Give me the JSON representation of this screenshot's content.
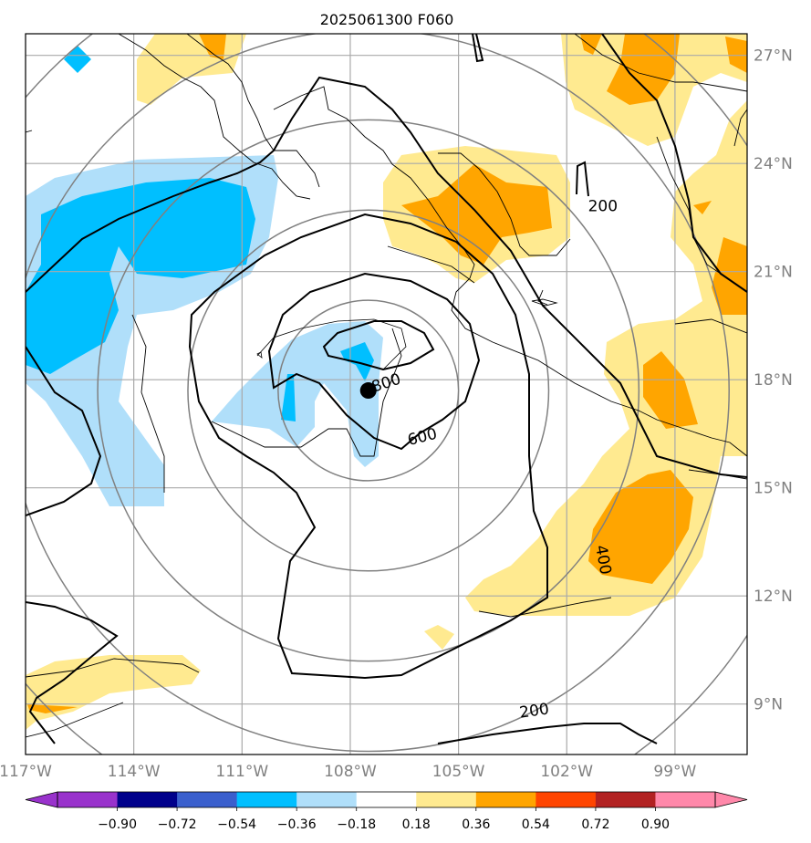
{
  "title": "2025061300 F060",
  "map": {
    "lon_range": [
      -117.0,
      -97.0
    ],
    "lat_range": [
      7.6,
      27.6
    ],
    "lon_ticks": [
      {
        "value": -117,
        "label": "117°W"
      },
      {
        "value": -114,
        "label": "114°W"
      },
      {
        "value": -111,
        "label": "111°W"
      },
      {
        "value": -108,
        "label": "108°W"
      },
      {
        "value": -105,
        "label": "105°W"
      },
      {
        "value": -102,
        "label": "102°W"
      },
      {
        "value": -99,
        "label": "99°W"
      }
    ],
    "lat_ticks": [
      {
        "value": 9,
        "label": "9°N"
      },
      {
        "value": 12,
        "label": "12°N"
      },
      {
        "value": 15,
        "label": "15°N"
      },
      {
        "value": 18,
        "label": "18°N"
      },
      {
        "value": 21,
        "label": "21°N"
      },
      {
        "value": 24,
        "label": "24°N"
      },
      {
        "value": 27,
        "label": "27°N"
      }
    ],
    "center": {
      "lon": -107.5,
      "lat": 17.7
    },
    "range_rings_deg": [
      2.5,
      5.0,
      7.5,
      10.0,
      12.5
    ],
    "contour_labels": [
      {
        "text": "800",
        "lon": -107.0,
        "lat": 17.9,
        "rotate": -18
      },
      {
        "text": "600",
        "lon": -106.0,
        "lat": 16.4,
        "rotate": -14
      },
      {
        "text": "400",
        "lon": -101.0,
        "lat": 13.0,
        "rotate": 80
      },
      {
        "text": "200",
        "lon": -101.0,
        "lat": 22.8,
        "rotate": 0
      },
      {
        "text": "200",
        "lon": -102.9,
        "lat": 8.8,
        "rotate": -8
      }
    ],
    "colors": {
      "light_blue": "#b0dffa",
      "deep_sky": "#00bfff",
      "light_yellow": "#ffea90",
      "orange": "#ffa500",
      "grid": "#a9a9a9",
      "ring": "#808080",
      "coast": "#000000"
    }
  },
  "colorbar": {
    "labels": [
      "−0.90",
      "−0.72",
      "−0.54",
      "−0.36",
      "−0.18",
      "0.18",
      "0.36",
      "0.54",
      "0.72",
      "0.90"
    ],
    "colors": [
      "#9932cc",
      "#00008b",
      "#3a5fcd",
      "#00bfff",
      "#b0dffa",
      "#ffffff",
      "#ffea90",
      "#ffa500",
      "#ff4500",
      "#b22222",
      "#ff88aa"
    ],
    "under_color": "#9932cc",
    "over_color": "#ff88aa"
  }
}
